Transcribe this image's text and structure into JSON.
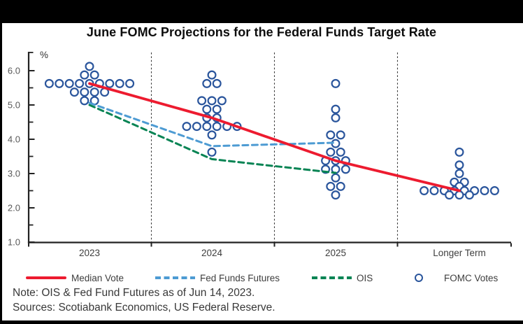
{
  "title": "June FOMC Projections for the Federal Funds Target Rate",
  "y_axis": {
    "unit_label": "%",
    "major_ticks": [
      {
        "value": 6,
        "label": "6.0"
      },
      {
        "value": 5,
        "label": "5.0"
      },
      {
        "value": 4,
        "label": "4.0"
      },
      {
        "value": 3,
        "label": "3.0"
      },
      {
        "value": 2,
        "label": "2.0"
      },
      {
        "value": 1,
        "label": "1.0"
      }
    ],
    "minor_tick_values": [
      5.5,
      4.5,
      3.5,
      2.5,
      1.5
    ]
  },
  "legend": {
    "items": [
      {
        "label": "Median Vote",
        "marker": "solid-line",
        "color": "#ED1B2F"
      },
      {
        "label": "Fed Funds Futures",
        "marker": "dashed-line",
        "color": "#4D9BD3"
      },
      {
        "label": "OIS",
        "marker": "dashed-line",
        "color": "#088454"
      },
      {
        "label": "FOMC Votes",
        "marker": "circle",
        "color": "#2A559C"
      }
    ]
  },
  "footnotes": {
    "note": "Note: OIS & Fed Fund Futures as of Jun 14, 2023.",
    "sources": "Sources: Scotiabank Economics, US Federal Reserve."
  },
  "colors": {
    "median_vote": "#ED1B2F",
    "fed_funds_futures": "#4D9BD3",
    "ois": "#088454",
    "fomc_votes": "#2A559C",
    "separator": "#3c3c3c",
    "axis": "#222222",
    "tick_label": "#595959",
    "category_label": "#3d3d3d"
  },
  "chart_data": {
    "type": "scatter",
    "subtype": "fomc-dot-plot-with-lines",
    "title": "June FOMC Projections for the Federal Funds Target Rate",
    "ylabel": "%",
    "ylim": [
      1.0,
      6.5
    ],
    "categories": [
      "2023",
      "2024",
      "2025",
      "Longer Term"
    ],
    "grid": "vertical-dashed-separators-between-categories",
    "legend_position": "bottom",
    "series": [
      {
        "name": "Median Vote",
        "type": "line",
        "dash": false,
        "color": "#ED1B2F",
        "points": [
          [
            "2023",
            5.625
          ],
          [
            "2024",
            4.625
          ],
          [
            "2025",
            3.375
          ],
          [
            "Longer Term",
            2.5
          ]
        ]
      },
      {
        "name": "Fed Funds Futures",
        "type": "line",
        "dash": true,
        "color": "#4D9BD3",
        "points": [
          [
            "2023",
            5.06
          ],
          [
            "2024",
            3.8
          ],
          [
            "2025",
            3.9
          ]
        ]
      },
      {
        "name": "OIS",
        "type": "line",
        "dash": true,
        "color": "#088454",
        "points": [
          [
            "2023",
            5.0
          ],
          [
            "2024",
            3.42
          ],
          [
            "2025",
            3.02
          ]
        ]
      },
      {
        "name": "FOMC Votes",
        "type": "scatter",
        "color": "#2A559C",
        "distributions": [
          {
            "category": "2023",
            "votes": [
              [
                6.125,
                1
              ],
              [
                5.875,
                2
              ],
              [
                5.625,
                9
              ],
              [
                5.375,
                4
              ],
              [
                5.125,
                2
              ]
            ]
          },
          {
            "category": "2024",
            "votes": [
              [
                5.875,
                1
              ],
              [
                5.625,
                2
              ],
              [
                5.125,
                3
              ],
              [
                4.875,
                2
              ],
              [
                4.625,
                2
              ],
              [
                4.375,
                6
              ],
              [
                4.125,
                1
              ],
              [
                3.625,
                1
              ]
            ]
          },
          {
            "category": "2025",
            "votes": [
              [
                5.625,
                1
              ],
              [
                4.875,
                1
              ],
              [
                4.625,
                1
              ],
              [
                4.125,
                2
              ],
              [
                3.875,
                1
              ],
              [
                3.625,
                2
              ],
              [
                3.375,
                3
              ],
              [
                3.125,
                3
              ],
              [
                2.875,
                1
              ],
              [
                2.625,
                2
              ],
              [
                2.375,
                1
              ]
            ]
          },
          {
            "category": "Longer Term",
            "votes": [
              [
                3.625,
                1
              ],
              [
                3.25,
                1
              ],
              [
                3.0,
                1
              ],
              [
                2.75,
                2
              ],
              [
                2.625,
                1
              ],
              [
                2.5,
                8
              ],
              [
                2.375,
                3
              ]
            ]
          }
        ]
      }
    ]
  }
}
